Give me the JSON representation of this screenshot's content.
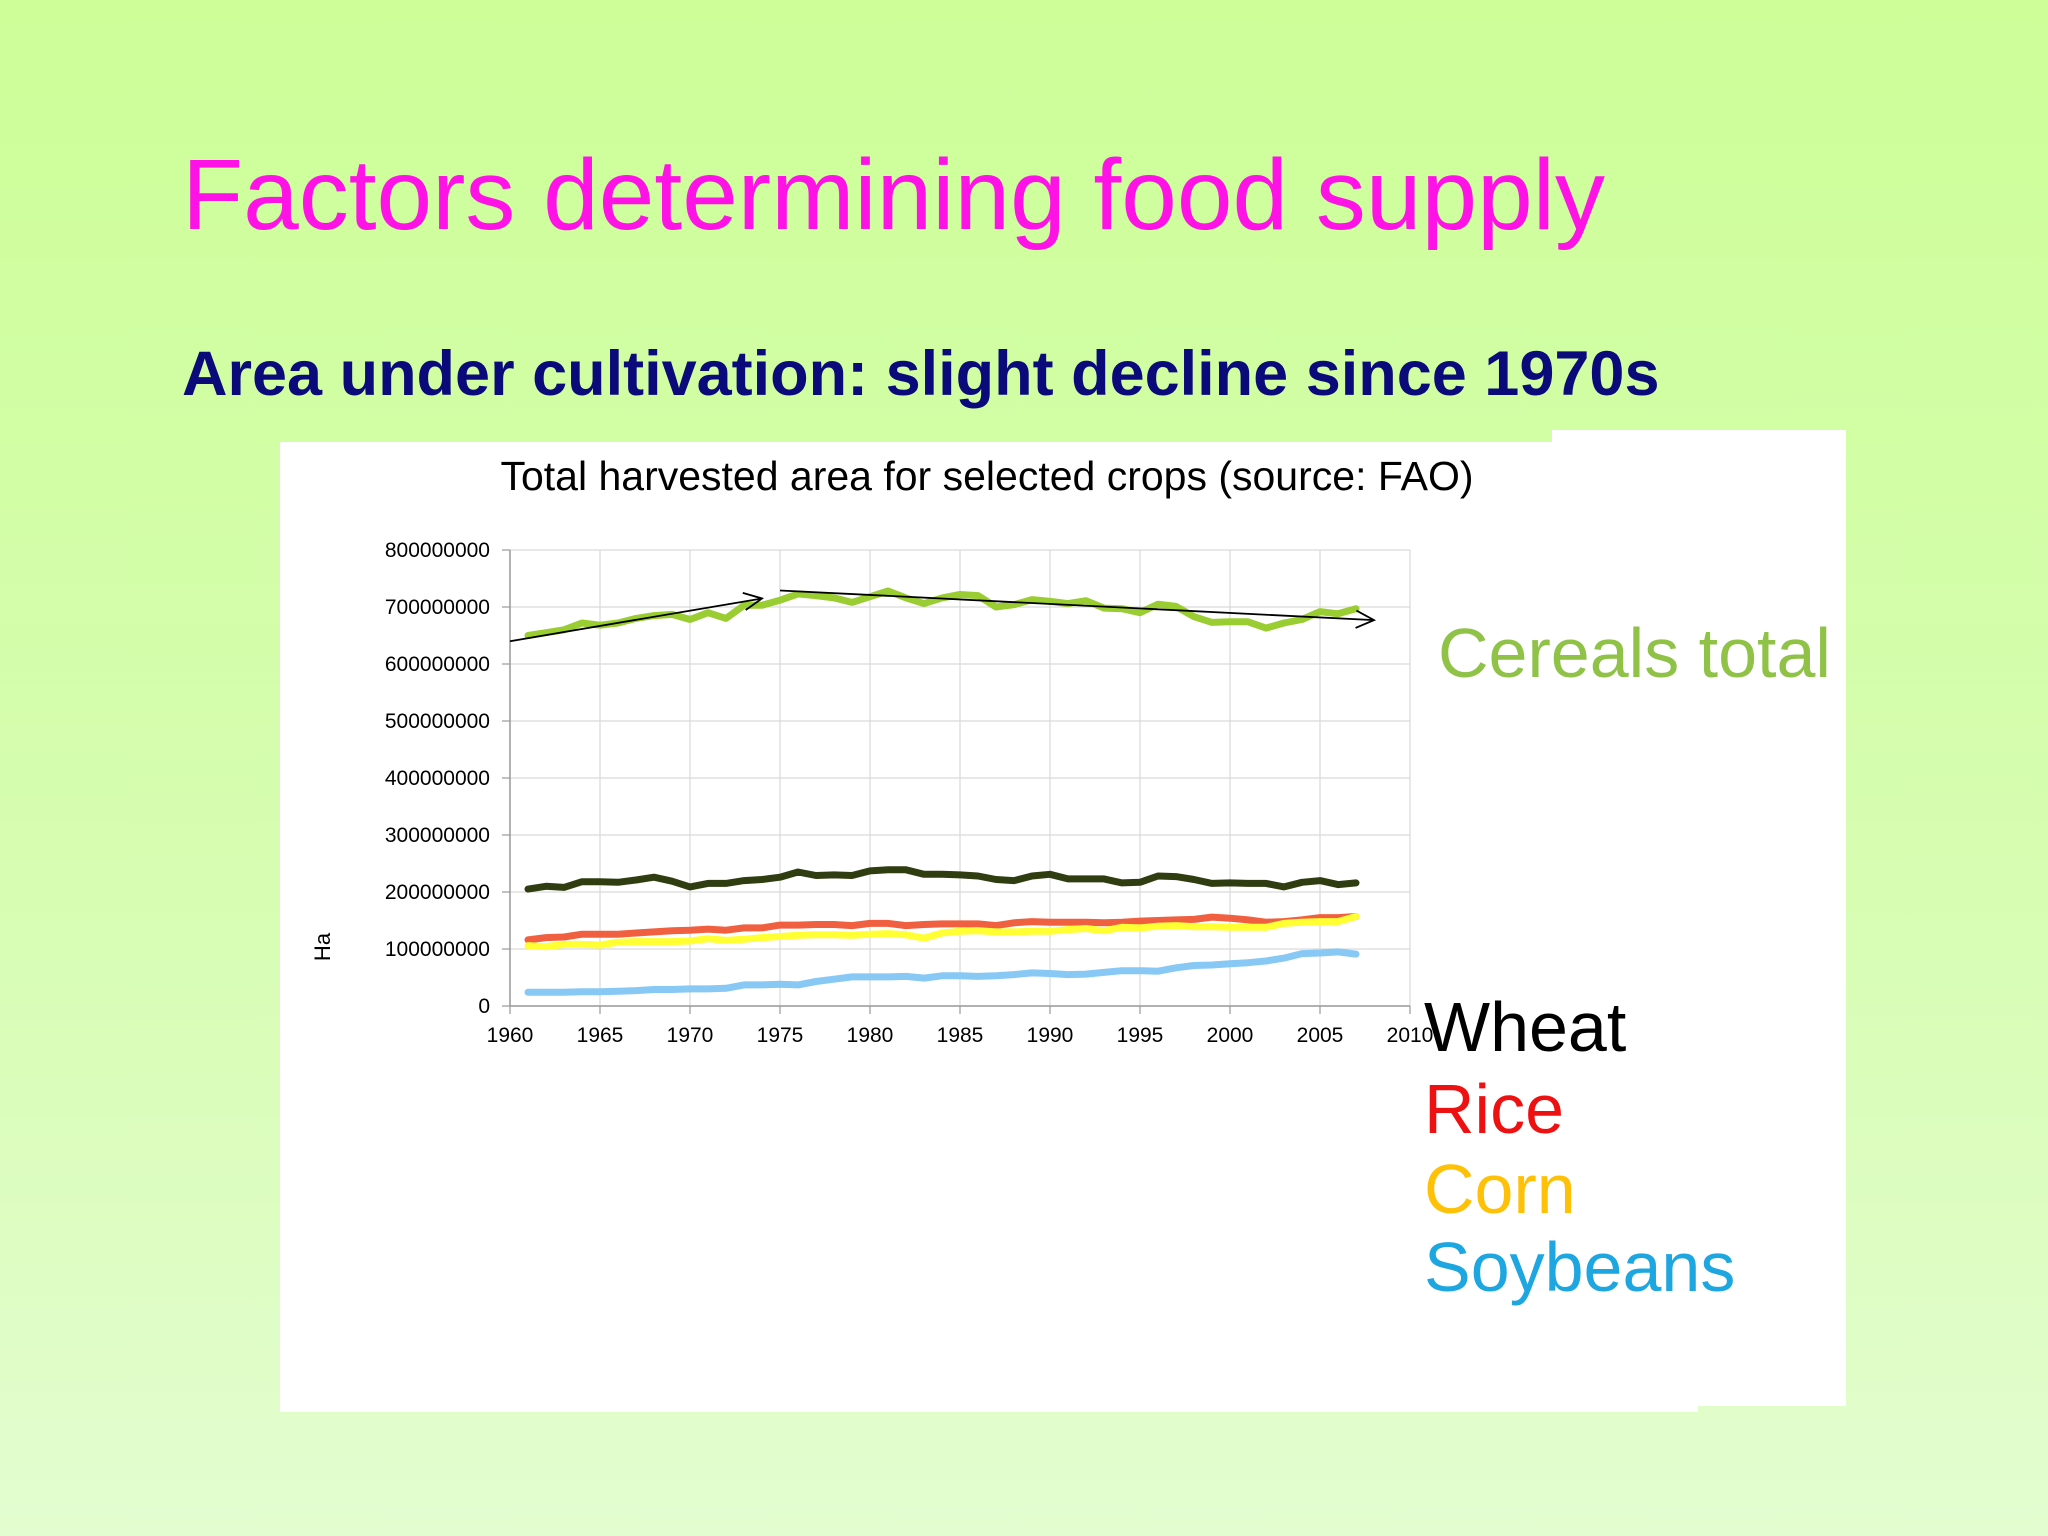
{
  "slide": {
    "title": "Factors determining food supply",
    "subtitle": "Area under cultivation: slight decline since 1970s"
  },
  "colors": {
    "title": "#ff12e6",
    "subtitle": "#0a0a7a",
    "background_top": "#cdfe98",
    "background_bottom": "#e3fdd0"
  },
  "chart_data": {
    "type": "line",
    "title": "Total harvested area for selected crops (source: FAO)",
    "xlabel": "",
    "ylabel": "Ha",
    "xlim": [
      1960,
      2010
    ],
    "ylim": [
      0,
      800000000
    ],
    "xticks": [
      "1960",
      "1965",
      "1970",
      "1975",
      "1980",
      "1985",
      "1990",
      "1995",
      "2000",
      "2005",
      "2010"
    ],
    "yticks": [
      "0",
      "100000000",
      "200000000",
      "300000000",
      "400000000",
      "500000000",
      "600000000",
      "700000000",
      "800000000"
    ],
    "grid": true,
    "legend_placement": "right",
    "x": [
      1961,
      1962,
      1963,
      1964,
      1965,
      1966,
      1967,
      1968,
      1969,
      1970,
      1971,
      1972,
      1973,
      1974,
      1975,
      1976,
      1977,
      1978,
      1979,
      1980,
      1981,
      1982,
      1983,
      1984,
      1985,
      1986,
      1987,
      1988,
      1989,
      1990,
      1991,
      1992,
      1993,
      1994,
      1995,
      1996,
      1997,
      1998,
      1999,
      2000,
      2001,
      2002,
      2003,
      2004,
      2005,
      2006,
      2007
    ],
    "series": [
      {
        "name": "Cereals total",
        "color": "#9acd32",
        "label_color": "#8fc247",
        "values": [
          650000000,
          655000000,
          660000000,
          672000000,
          668000000,
          672000000,
          680000000,
          685000000,
          687000000,
          678000000,
          690000000,
          680000000,
          703000000,
          703000000,
          712000000,
          723000000,
          720000000,
          716000000,
          708000000,
          718000000,
          728000000,
          716000000,
          706000000,
          716000000,
          722000000,
          720000000,
          700000000,
          704000000,
          713000000,
          710000000,
          706000000,
          711000000,
          698000000,
          697000000,
          690000000,
          705000000,
          701000000,
          683000000,
          673000000,
          674000000,
          674000000,
          663000000,
          672000000,
          678000000,
          692000000,
          688000000,
          697000000
        ]
      },
      {
        "name": "Wheat",
        "color": "#2f3d10",
        "label_color": "#000000",
        "values": [
          205000000,
          210000000,
          208000000,
          218000000,
          218000000,
          217000000,
          221000000,
          226000000,
          219000000,
          209000000,
          215000000,
          215000000,
          220000000,
          222000000,
          226000000,
          235000000,
          229000000,
          230000000,
          229000000,
          237000000,
          239000000,
          239000000,
          231000000,
          231000000,
          230000000,
          228000000,
          222000000,
          220000000,
          228000000,
          231000000,
          223000000,
          223000000,
          223000000,
          216000000,
          217000000,
          228000000,
          227000000,
          222000000,
          215000000,
          216000000,
          215000000,
          215000000,
          209000000,
          217000000,
          220000000,
          213000000,
          216000000
        ]
      },
      {
        "name": "Rice",
        "color": "#f06040",
        "label_color": "#ee1111",
        "values": [
          116000000,
          120000000,
          121000000,
          126000000,
          126000000,
          126000000,
          128000000,
          130000000,
          132000000,
          133000000,
          135000000,
          133000000,
          137000000,
          137000000,
          142000000,
          142000000,
          143000000,
          143000000,
          141000000,
          145000000,
          145000000,
          141000000,
          143000000,
          144000000,
          144000000,
          144000000,
          141000000,
          146000000,
          148000000,
          147000000,
          147000000,
          147000000,
          146000000,
          147000000,
          149000000,
          150000000,
          151000000,
          152000000,
          156000000,
          154000000,
          151000000,
          147000000,
          148000000,
          151000000,
          155000000,
          155000000,
          157000000
        ]
      },
      {
        "name": "Corn",
        "color": "#ffff33",
        "label_color": "#ffc107",
        "values": [
          106000000,
          104000000,
          108000000,
          108000000,
          107000000,
          112000000,
          113000000,
          113000000,
          113000000,
          114000000,
          118000000,
          115000000,
          117000000,
          120000000,
          122000000,
          124000000,
          125000000,
          125000000,
          124000000,
          126000000,
          127000000,
          125000000,
          119000000,
          128000000,
          131000000,
          132000000,
          130000000,
          130000000,
          131000000,
          131000000,
          134000000,
          136000000,
          132000000,
          138000000,
          137000000,
          140000000,
          141000000,
          139000000,
          139000000,
          138000000,
          138000000,
          138000000,
          145000000,
          147000000,
          148000000,
          148000000,
          157000000
        ]
      },
      {
        "name": "Soybeans",
        "color": "#87c8f5",
        "label_color": "#1ea6e0",
        "values": [
          24000000,
          24000000,
          24000000,
          25000000,
          25000000,
          26000000,
          27000000,
          29000000,
          29000000,
          30000000,
          30000000,
          31000000,
          37000000,
          37000000,
          38000000,
          37000000,
          43000000,
          47000000,
          51000000,
          51000000,
          51000000,
          52000000,
          49000000,
          53000000,
          53000000,
          52000000,
          53000000,
          55000000,
          58000000,
          57000000,
          55000000,
          56000000,
          59000000,
          62000000,
          62000000,
          61000000,
          67000000,
          71000000,
          72000000,
          74000000,
          76000000,
          79000000,
          84000000,
          92000000,
          93000000,
          95000000,
          91000000
        ]
      }
    ],
    "annotations": [
      {
        "type": "trend-arrow",
        "from": [
          1960,
          640000000
        ],
        "to": [
          1974,
          715000000
        ]
      },
      {
        "type": "trend-arrow",
        "from": [
          1975,
          729000000
        ],
        "to": [
          2008,
          677000000
        ]
      }
    ]
  }
}
